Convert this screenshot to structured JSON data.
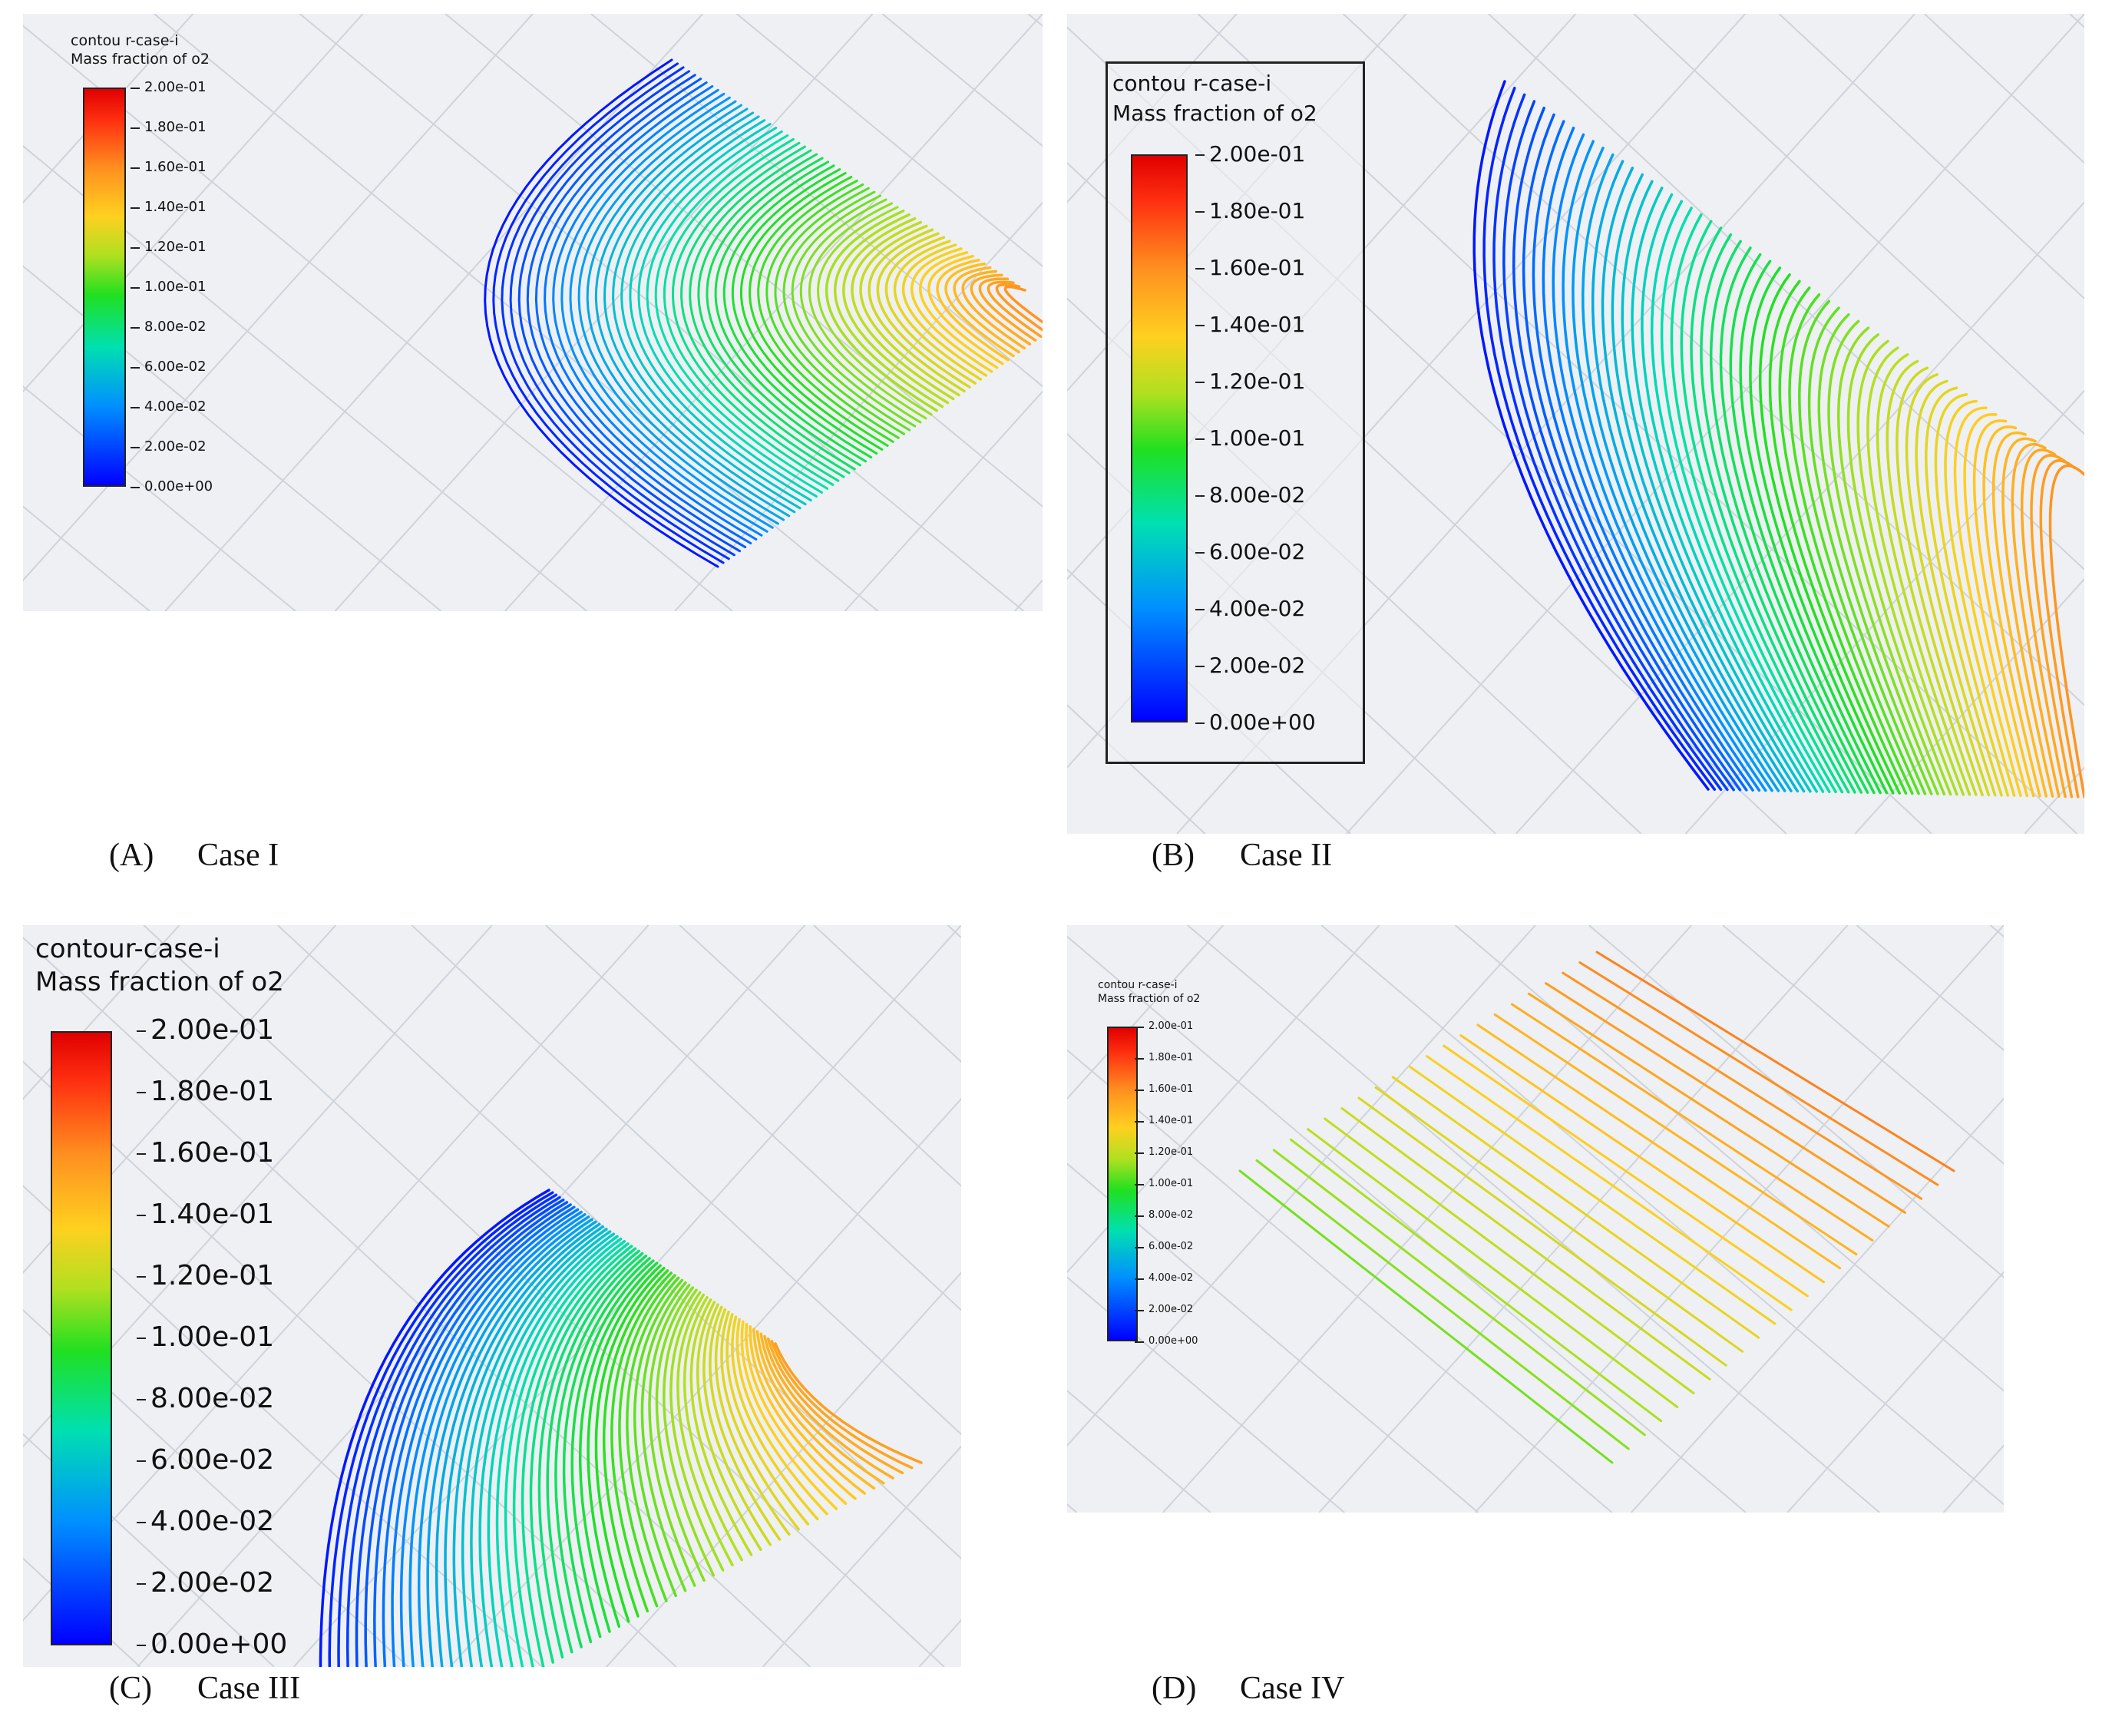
{
  "figure": {
    "panels": [
      {
        "id": "A",
        "label": "(A)",
        "case": "Case I",
        "legend": {
          "title": "contou r-case-i",
          "subtitle": "Mass fraction of o2",
          "ticks": [
            "2.00e-01",
            "1.80e-01",
            "1.60e-01",
            "1.40e-01",
            "1.20e-01",
            "1.00e-01",
            "8.00e-02",
            "6.00e-02",
            "4.00e-02",
            "2.00e-02",
            "0.00e+00"
          ]
        }
      },
      {
        "id": "B",
        "label": "(B)",
        "case": "Case II",
        "legend": {
          "title": "contou r-case-i",
          "subtitle": "Mass fraction of o2",
          "ticks": [
            "2.00e-01",
            "1.80e-01",
            "1.60e-01",
            "1.40e-01",
            "1.20e-01",
            "1.00e-01",
            "8.00e-02",
            "6.00e-02",
            "4.00e-02",
            "2.00e-02",
            "0.00e+00"
          ]
        }
      },
      {
        "id": "C",
        "label": "(C)",
        "case": "Case III",
        "legend": {
          "title": "contour-case-i",
          "subtitle": "Mass fraction of o2",
          "ticks": [
            "2.00e-01",
            "1.80e-01",
            "1.60e-01",
            "1.40e-01",
            "1.20e-01",
            "1.00e-01",
            "8.00e-02",
            "6.00e-02",
            "4.00e-02",
            "2.00e-02",
            "0.00e+00"
          ]
        }
      },
      {
        "id": "D",
        "label": "(D)",
        "case": "Case IV",
        "legend": {
          "title": "contou r-case-i",
          "subtitle": "Mass fraction of o2",
          "ticks": [
            "2.00e-01",
            "1.80e-01",
            "1.60e-01",
            "1.40e-01",
            "1.20e-01",
            "1.00e-01",
            "8.00e-02",
            "6.00e-02",
            "4.00e-02",
            "2.00e-02",
            "0.00e+00"
          ]
        }
      }
    ],
    "colormap": [
      "#0000ff",
      "#0090ff",
      "#00e0b0",
      "#20e020",
      "#b0e020",
      "#ffd020",
      "#ff9020",
      "#ff3010",
      "#e00000"
    ]
  }
}
